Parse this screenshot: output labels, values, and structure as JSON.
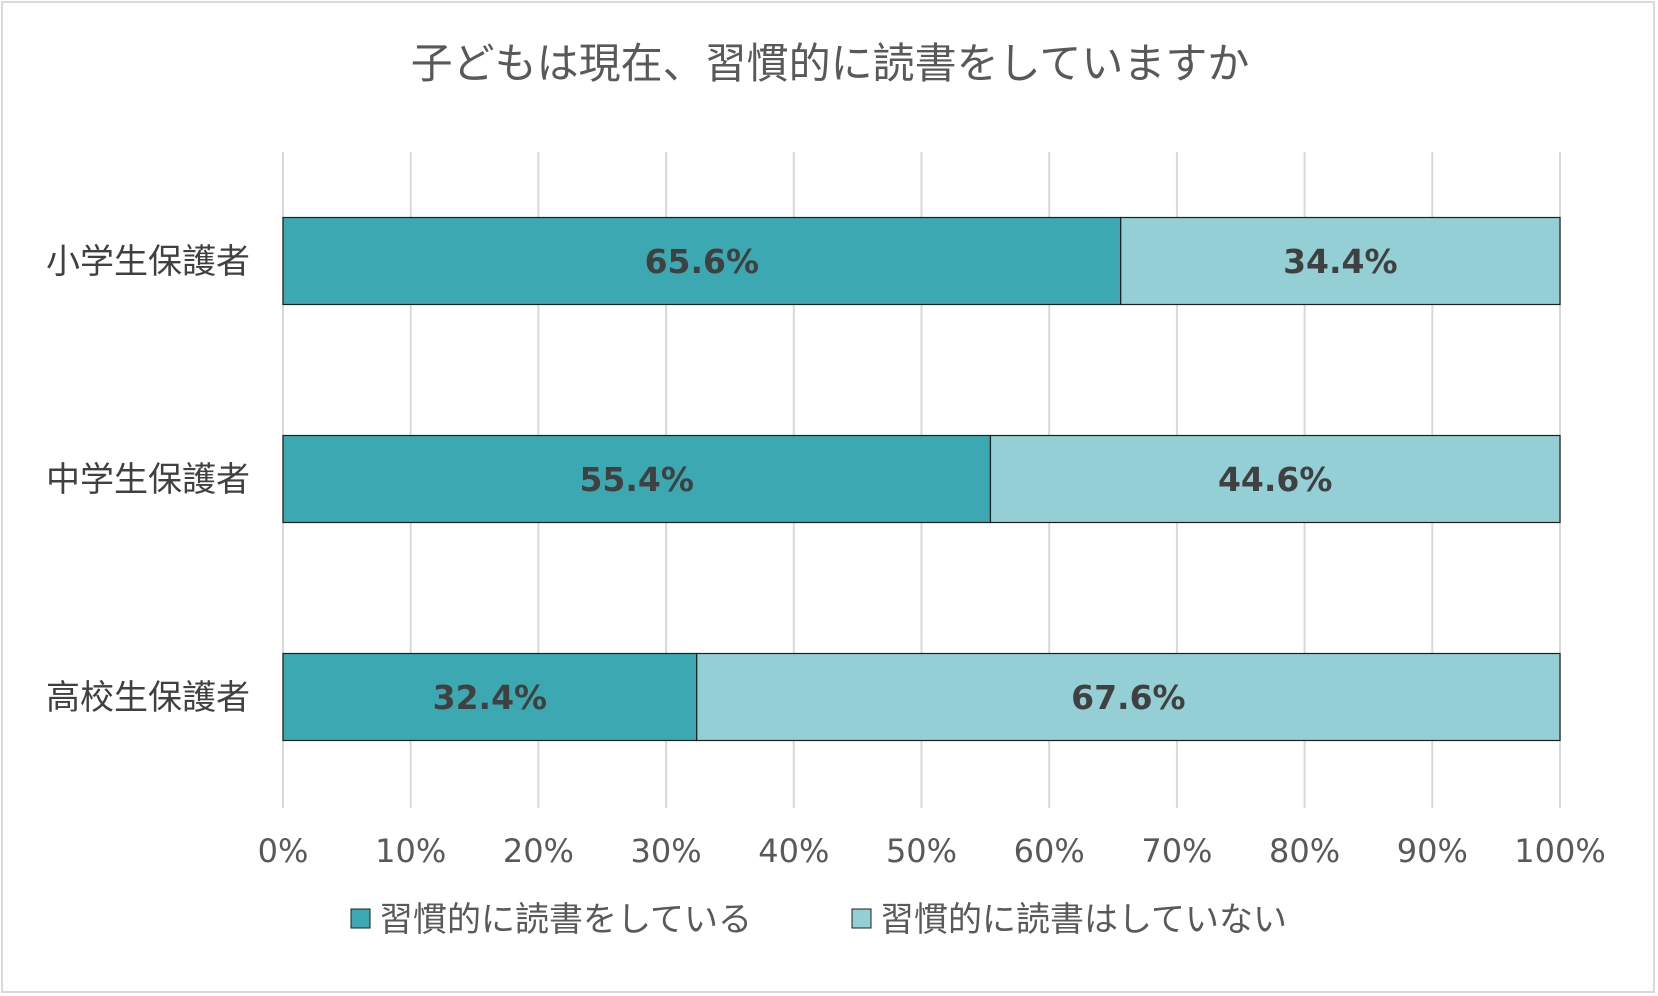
{
  "chart_data": {
    "type": "bar",
    "orientation": "horizontal",
    "stacked": "percent",
    "title": "子どもは現在、習慣的に読書をしていますか",
    "categories": [
      "小学生保護者",
      "中学生保護者",
      "高校生保護者"
    ],
    "series": [
      {
        "name": "習慣的に読書をしている",
        "values": [
          65.6,
          55.4,
          32.4
        ],
        "color": "#3ca8b2",
        "labels": [
          "65.6%",
          "55.4%",
          "32.4%"
        ]
      },
      {
        "name": "習慣的に読書はしていない",
        "values": [
          34.4,
          44.6,
          67.6
        ],
        "color": "#93cfd5",
        "labels": [
          "34.4%",
          "44.6%",
          "67.6%"
        ]
      }
    ],
    "xlim": [
      0,
      100
    ],
    "xticks": [
      "0%",
      "10%",
      "20%",
      "30%",
      "40%",
      "50%",
      "60%",
      "70%",
      "80%",
      "90%",
      "100%"
    ],
    "grid": true,
    "legend_position": "bottom"
  }
}
